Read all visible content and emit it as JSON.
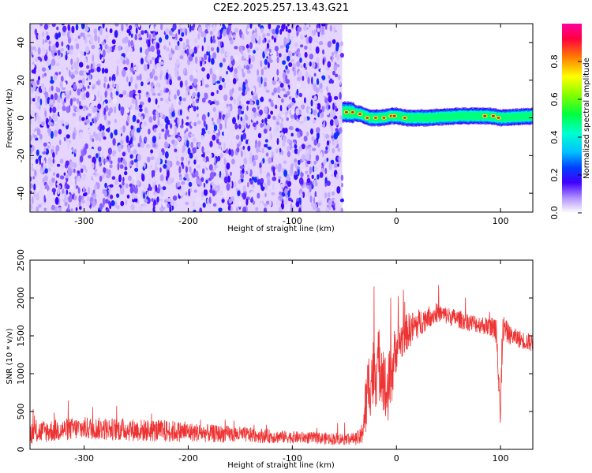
{
  "title": "C2E2.2025.257.13.43.G21",
  "chart_data": [
    {
      "type": "heatmap",
      "xlabel": "Height of straight line (km)",
      "ylabel": "Frequency (Hz)",
      "xlim": [
        -352,
        131
      ],
      "ylim": [
        -50,
        50
      ],
      "x_ticks": [
        -300,
        -200,
        -100,
        0,
        100
      ],
      "y_ticks": [
        -40,
        -20,
        0,
        20,
        40
      ],
      "noise_region": {
        "x": [
          -352,
          -52
        ],
        "y": [
          -50,
          50
        ],
        "amplitude": [
          0.0,
          0.3
        ],
        "color": "#7000e0"
      },
      "signal_band": {
        "x": [
          -52,
          131
        ],
        "center": [
          [
            -52,
            3
          ],
          [
            -45,
            3
          ],
          [
            -35,
            2
          ],
          [
            -25,
            0
          ],
          [
            -15,
            0
          ],
          [
            -5,
            1
          ],
          [
            0,
            1
          ],
          [
            10,
            0
          ],
          [
            30,
            0
          ],
          [
            60,
            1
          ],
          [
            90,
            1
          ],
          [
            100,
            0
          ],
          [
            131,
            1
          ]
        ],
        "half_width": 4.5,
        "peak_points": [
          [
            -48,
            3
          ],
          [
            -42,
            3
          ],
          [
            -35,
            2
          ],
          [
            -28,
            0
          ],
          [
            -20,
            0
          ],
          [
            -12,
            0
          ],
          [
            -5,
            1
          ],
          [
            -2,
            1
          ],
          [
            8,
            0
          ],
          [
            85,
            1
          ],
          [
            93,
            1
          ],
          [
            98,
            0
          ]
        ]
      },
      "colorbar": {
        "label": "Normalized spectral amplitude",
        "range": [
          0,
          1
        ],
        "ticks": [
          0.0,
          0.2,
          0.4,
          0.6,
          0.8
        ]
      }
    },
    {
      "type": "line",
      "xlabel": "Height of straight line (km)",
      "ylabel": "SNR (10 * v/v)",
      "xlim": [
        -352,
        131
      ],
      "ylim": [
        0,
        2500
      ],
      "x_ticks": [
        -300,
        -200,
        -100,
        0,
        100
      ],
      "y_ticks": [
        0,
        500,
        1000,
        1500,
        2000,
        2500
      ],
      "line_color": "#ee3333",
      "series": [
        {
          "x": [
            -352,
            -320,
            -300,
            -280,
            -260,
            -240,
            -220,
            -200,
            -180,
            -160,
            -140,
            -120,
            -100,
            -80,
            -60,
            -40,
            -34,
            -30,
            -26,
            -22,
            -18,
            -14,
            -10,
            -6,
            -2,
            0,
            10,
            20,
            30,
            40,
            50,
            60,
            70,
            80,
            90,
            96,
            98,
            100,
            102,
            106,
            110,
            120,
            131
          ],
          "y": [
            220,
            260,
            280,
            270,
            260,
            250,
            240,
            230,
            210,
            200,
            190,
            170,
            160,
            150,
            140,
            140,
            160,
            500,
            900,
            1000,
            1100,
            1150,
            700,
            900,
            1200,
            1350,
            1550,
            1650,
            1750,
            1800,
            1760,
            1720,
            1680,
            1650,
            1620,
            1600,
            1200,
            300,
            1600,
            1550,
            1500,
            1450,
            1400
          ],
          "noise_amplitude": [
            150,
            150,
            150,
            150,
            150,
            150,
            150,
            130,
            120,
            110,
            100,
            90,
            80,
            80,
            80,
            80,
            120,
            400,
            500,
            500,
            500,
            500,
            500,
            450,
            400,
            300,
            250,
            200,
            150,
            120,
            120,
            120,
            120,
            120,
            120,
            200,
            400,
            600,
            200,
            150,
            120,
            120,
            120
          ]
        }
      ]
    }
  ]
}
